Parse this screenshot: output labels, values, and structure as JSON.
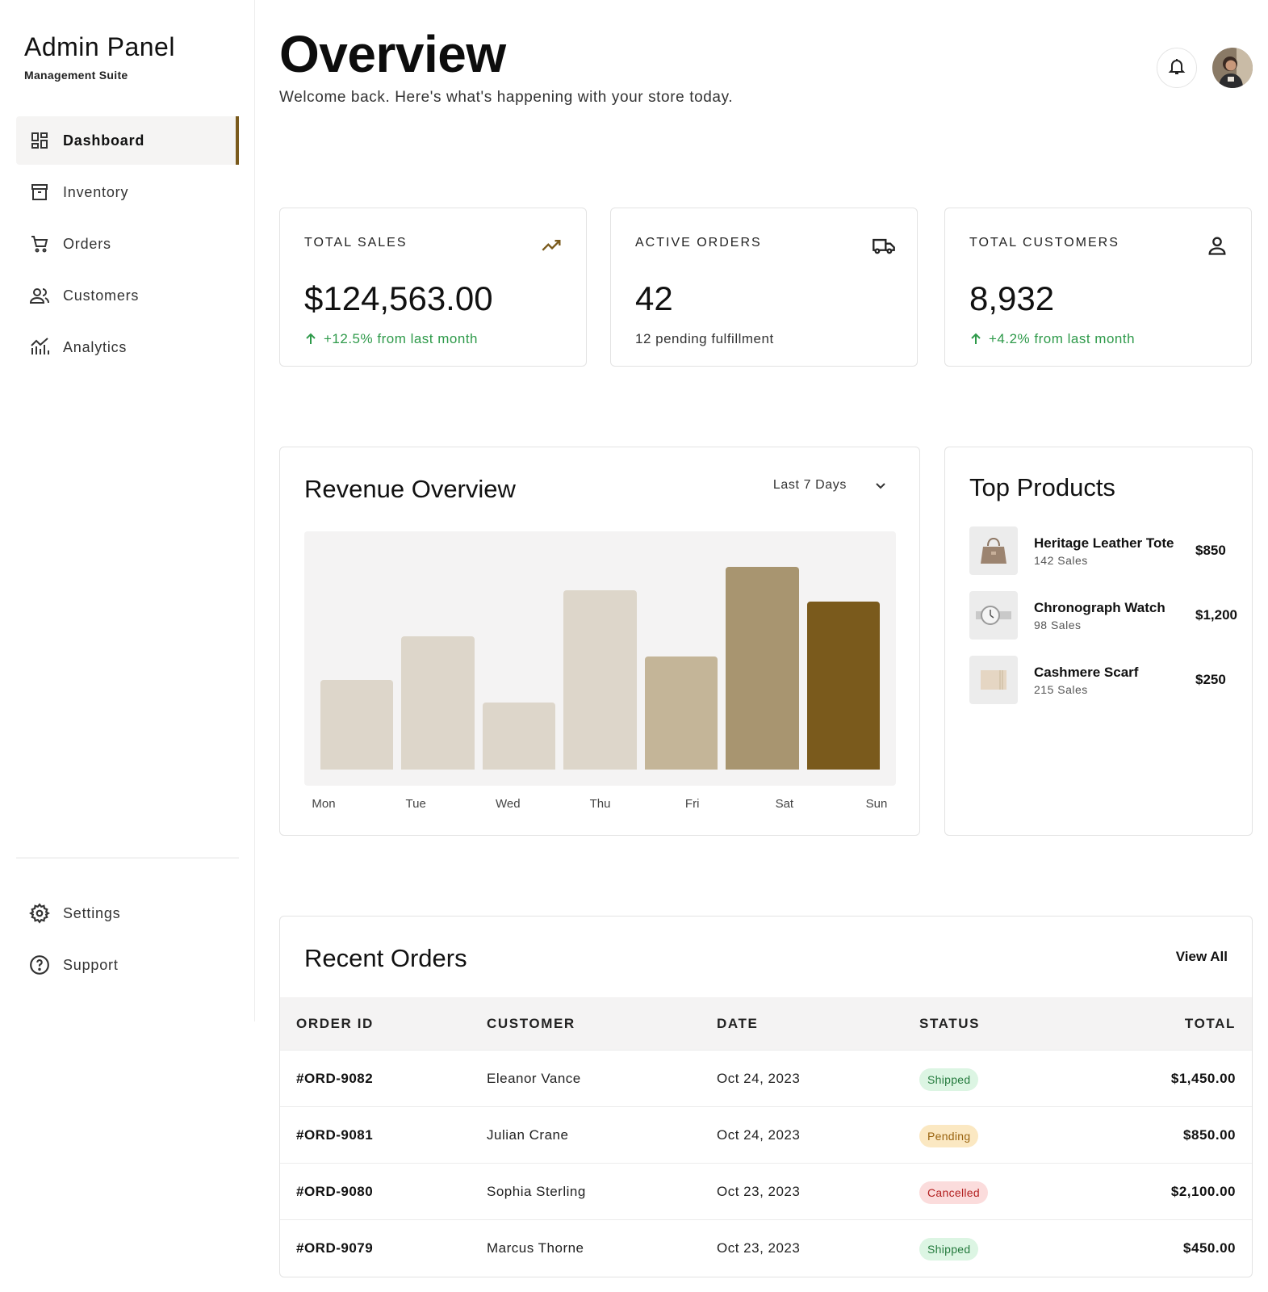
{
  "sidebar": {
    "brand_title": "Admin Panel",
    "brand_subtitle": "Management Suite",
    "nav": [
      {
        "label": "Dashboard",
        "icon": "dashboard-icon",
        "active": true
      },
      {
        "label": "Inventory",
        "icon": "archive-box-icon",
        "active": false
      },
      {
        "label": "Orders",
        "icon": "shopping-cart-icon",
        "active": false
      },
      {
        "label": "Customers",
        "icon": "users-icon",
        "active": false
      },
      {
        "label": "Analytics",
        "icon": "analytics-chart-icon",
        "active": false
      }
    ],
    "bottom_nav": [
      {
        "label": "Settings",
        "icon": "gear-icon"
      },
      {
        "label": "Support",
        "icon": "help-circle-icon"
      }
    ]
  },
  "header": {
    "title": "Overview",
    "subtitle": "Welcome back. Here's what's happening with your store today.",
    "bell_icon": "bell-icon"
  },
  "kpis": [
    {
      "label": "TOTAL SALES",
      "value": "$124,563.00",
      "note": "+12.5% from last month",
      "trend": "up",
      "icon": "trending-up-icon"
    },
    {
      "label": "ACTIVE ORDERS",
      "value": "42",
      "note": "12 pending fulfillment",
      "trend": "neutral",
      "icon": "truck-icon"
    },
    {
      "label": "TOTAL CUSTOMERS",
      "value": "8,932",
      "note": "+4.2% from last month",
      "trend": "up",
      "icon": "user-icon"
    }
  ],
  "revenue": {
    "title": "Revenue Overview",
    "range": "Last 7 Days"
  },
  "chart_data": {
    "type": "bar",
    "categories": [
      "Mon",
      "Tue",
      "Wed",
      "Thu",
      "Fri",
      "Sat",
      "Sun"
    ],
    "values": [
      39,
      58,
      29,
      78,
      49,
      88,
      73
    ],
    "ylim": [
      0,
      100
    ],
    "grid": false,
    "bar_colors": [
      "#ddd6ca",
      "#ddd6ca",
      "#ddd6ca",
      "#ddd6ca",
      "#c4b598",
      "#a89570",
      "#7a5a1c"
    ]
  },
  "top_products": {
    "title": "Top Products",
    "items": [
      {
        "name": "Heritage Leather Tote",
        "sales": "142 Sales",
        "price": "$850"
      },
      {
        "name": "Chronograph Watch",
        "sales": "98 Sales",
        "price": "$1,200"
      },
      {
        "name": "Cashmere Scarf",
        "sales": "215 Sales",
        "price": "$250"
      }
    ]
  },
  "recent_orders": {
    "title": "Recent Orders",
    "view_all": "View All",
    "columns": [
      "ORDER ID",
      "CUSTOMER",
      "DATE",
      "STATUS",
      "TOTAL"
    ],
    "rows": [
      {
        "id": "#ORD-9082",
        "customer": "Eleanor Vance",
        "date": "Oct 24, 2023",
        "status": "Shipped",
        "total": "$1,450.00"
      },
      {
        "id": "#ORD-9081",
        "customer": "Julian Crane",
        "date": "Oct 24, 2023",
        "status": "Pending",
        "total": "$850.00"
      },
      {
        "id": "#ORD-9080",
        "customer": "Sophia Sterling",
        "date": "Oct 23, 2023",
        "status": "Cancelled",
        "total": "$2,100.00"
      },
      {
        "id": "#ORD-9079",
        "customer": "Marcus Thorne",
        "date": "Oct 23, 2023",
        "status": "Shipped",
        "total": "$450.00"
      }
    ],
    "status_colors": {
      "Shipped": {
        "bg": "#dcf5e3",
        "fg": "#237a3c"
      },
      "Pending": {
        "bg": "#fbe8c2",
        "fg": "#9a6410"
      },
      "Cancelled": {
        "bg": "#fbdcdc",
        "fg": "#b32020"
      }
    }
  },
  "colors": {
    "accent": "#7a5a1c",
    "positive": "#2e9a4a"
  }
}
